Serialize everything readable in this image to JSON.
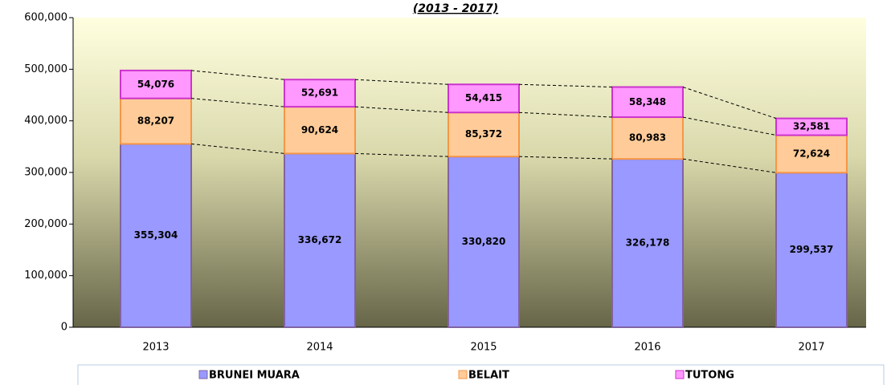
{
  "chart_data": {
    "type": "bar",
    "stacked": true,
    "title": "(2013 - 2017)",
    "categories": [
      "2013",
      "2014",
      "2015",
      "2016",
      "2017"
    ],
    "series": [
      {
        "name": "BRUNEI MUARA",
        "color": "#9999ff",
        "border": "#8064a2",
        "values": [
          355304,
          336672,
          330820,
          326178,
          299537
        ],
        "value_labels": [
          "355,304",
          "336,672",
          "330,820",
          "326,178",
          "299,537"
        ]
      },
      {
        "name": "BELAIT",
        "color": "#ffcc99",
        "border": "#f79646",
        "values": [
          88207,
          90624,
          85372,
          80983,
          72624
        ],
        "value_labels": [
          "88,207",
          "90,624",
          "85,372",
          "80,983",
          "72,624"
        ]
      },
      {
        "name": "TUTONG",
        "color": "#ff99ff",
        "border": "#cc33cc",
        "values": [
          54076,
          52691,
          54415,
          58348,
          32581
        ],
        "value_labels": [
          "54,076",
          "52,691",
          "54,415",
          "58,348",
          "32,581"
        ]
      }
    ],
    "ylim": [
      0,
      600000
    ],
    "yticks": [
      0,
      {
        "value": 100000,
        "label": "100,000"
      },
      {
        "value": 200000,
        "label": "200,000"
      },
      {
        "value": 300000,
        "label": "300,000"
      },
      {
        "value": 400000,
        "label": "400,000"
      },
      {
        "value": 500000,
        "label": "500,000"
      },
      {
        "value": 600000,
        "label": "600,000"
      }
    ],
    "legend": "bottom"
  }
}
